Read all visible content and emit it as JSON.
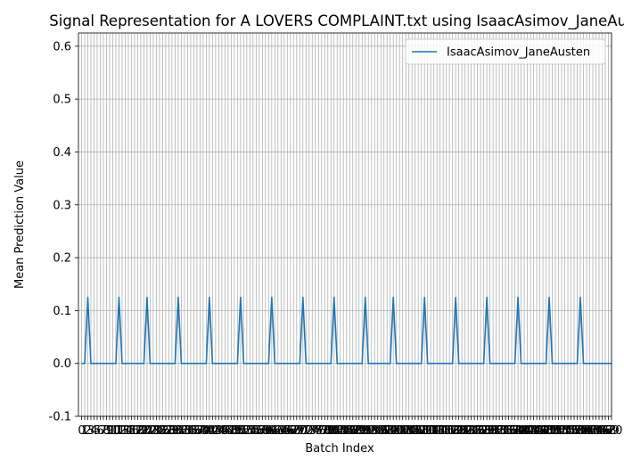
{
  "chart_data": {
    "type": "line",
    "title": "Signal Representation for A LOVERS COMPLAINT.txt using IsaacAsimov_JaneAusten",
    "xlabel": "Batch Index",
    "ylabel": "Mean Prediction Value",
    "xlim": [
      -1,
      170
    ],
    "ylim": [
      -0.1,
      0.625
    ],
    "y_ticks": [
      -0.1,
      0.0,
      0.1,
      0.2,
      0.3,
      0.4,
      0.5,
      0.6
    ],
    "x_tick_step": 1,
    "grid": true,
    "legend_position": "top-right",
    "series": [
      {
        "name": "IsaacAsimov_JaneAusten",
        "color": "#1f77b4",
        "peak_value": 0.125,
        "baseline_value": 0.0,
        "peak_x": [
          2,
          12,
          21,
          31,
          41,
          51,
          61,
          71,
          81,
          91,
          100,
          110,
          120,
          130,
          140,
          150,
          160
        ],
        "x_start": 0,
        "x_end": 170
      }
    ]
  }
}
